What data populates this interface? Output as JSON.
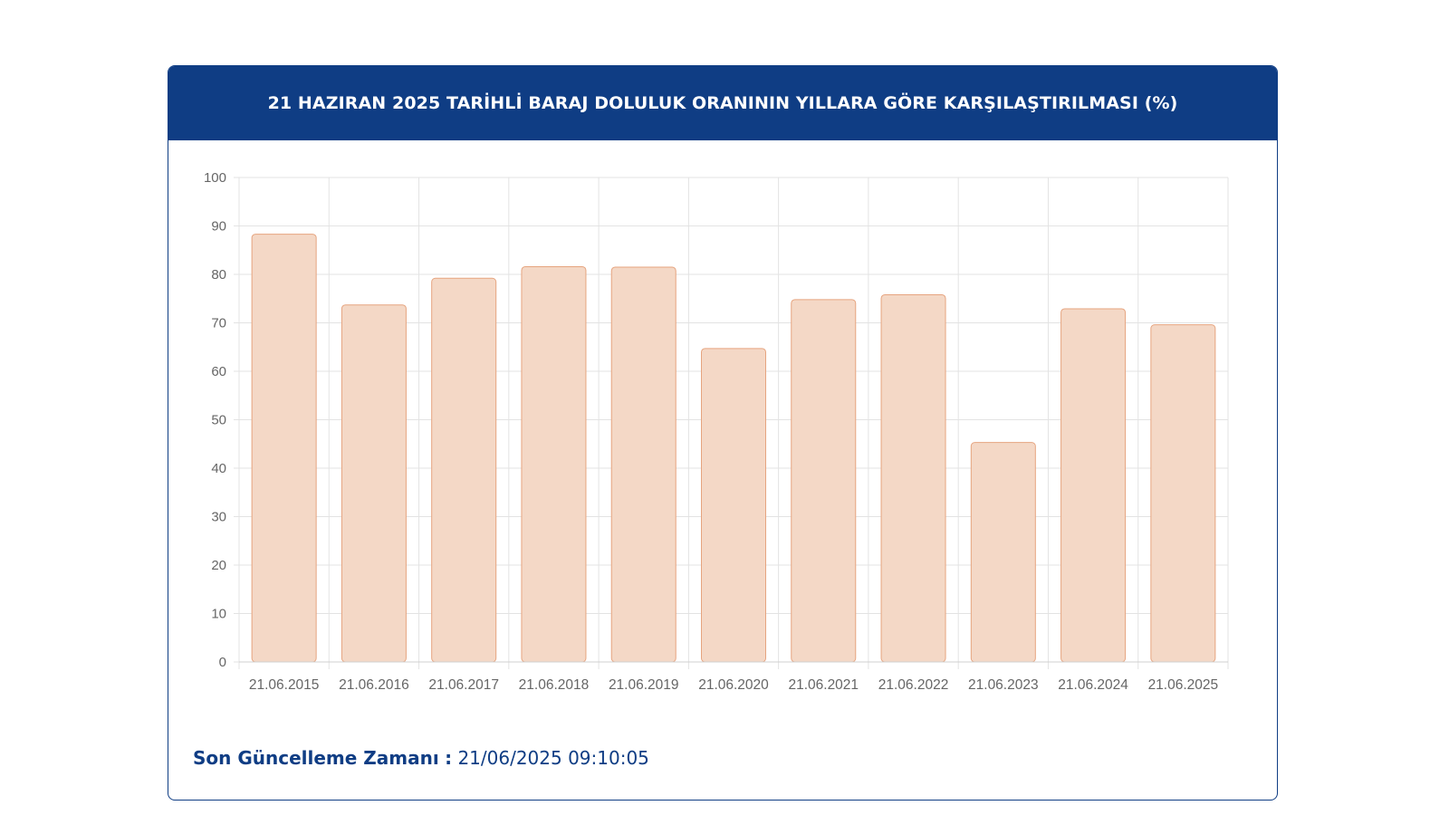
{
  "chart_data": {
    "type": "bar",
    "title": "21 HAZIRAN 2025 TARİHLİ BARAJ DOLULUK ORANININ YILLARA GÖRE KARŞILAŞTIRILMASI (%)",
    "categories": [
      "21.06.2015",
      "21.06.2016",
      "21.06.2017",
      "21.06.2018",
      "21.06.2019",
      "21.06.2020",
      "21.06.2021",
      "21.06.2022",
      "21.06.2023",
      "21.06.2024",
      "21.06.2025"
    ],
    "values": [
      88.3,
      73.7,
      79.2,
      81.6,
      81.5,
      64.7,
      74.8,
      75.8,
      45.3,
      72.9,
      69.6
    ],
    "ylim": [
      0,
      100
    ],
    "yticks": [
      0,
      10,
      20,
      30,
      40,
      50,
      60,
      70,
      80,
      90,
      100
    ],
    "grid": true,
    "bar_fill": "#f4d8c6",
    "bar_stroke": "#e6a47f"
  },
  "header": {
    "bg_color": "#0f3d84"
  },
  "footer": {
    "label": "Son Güncelleme Zamanı",
    "separator": ":",
    "value": "21/06/2025 09:10:05"
  }
}
